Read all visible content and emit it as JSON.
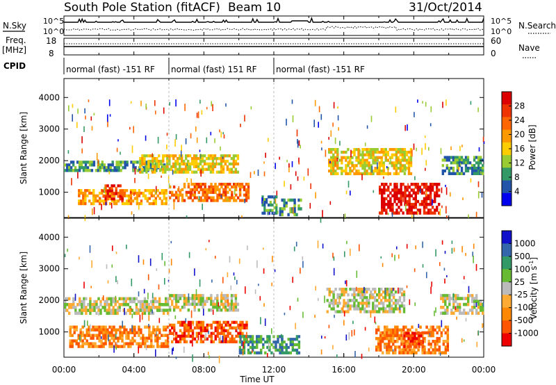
{
  "header": {
    "title": "South Pole Station (fitACF)",
    "beam": "Beam 10",
    "date": "31/Oct/2014"
  },
  "panel_labels": {
    "nsky": "N.Sky",
    "nsearch": "N.Search",
    "freq_line1": "Freq.",
    "freq_line2": "[MHz]",
    "nave": "Nave",
    "cpid": "CPID"
  },
  "cpid_segments": [
    {
      "label": "normal (fast) -151 RF",
      "start_h": 0,
      "end_h": 6
    },
    {
      "label": "normal (fast) 151 RF",
      "start_h": 6,
      "end_h": 12
    },
    {
      "label": "normal (fast) -151 RF",
      "start_h": 12,
      "end_h": 24
    }
  ],
  "xaxis": {
    "label": "Time UT",
    "ticks": [
      "00:00",
      "04:00",
      "08:00",
      "12:00",
      "16:00",
      "20:00",
      "00:00"
    ]
  },
  "colorbars": {
    "power": {
      "label": "Power [dB]",
      "ticks": [
        "28",
        "24",
        "20",
        "16",
        "12",
        "8",
        "4"
      ],
      "colors": [
        "#dd0000",
        "#ee3300",
        "#ff6600",
        "#ff9900",
        "#ffcc00",
        "#99cc33",
        "#339966",
        "#2255aa",
        "#0000ee"
      ]
    },
    "velocity": {
      "label": "Velocity [m s",
      "label_sup": "-1",
      "label_end": "]",
      "ticks": [
        "1000",
        "500",
        "100",
        "25",
        "-25",
        "-100",
        "-500",
        "-1000"
      ],
      "colors": [
        "#1111cc",
        "#3366aa",
        "#339966",
        "#66bb33",
        "#bbbbbb",
        "#ffaa33",
        "#ff8800",
        "#ff5500",
        "#ee0000"
      ]
    }
  },
  "chart_data": [
    {
      "type": "line",
      "title": "",
      "ylabel": "N.Sky",
      "yticks": [
        "10^5",
        "10^0"
      ],
      "right_ticks": [
        "10^5",
        "10^0"
      ],
      "right_label": "N.Search",
      "xlim": [
        0,
        24
      ]
    },
    {
      "type": "line",
      "ylabel": "Freq. [MHz]",
      "yticks": [
        "18",
        "8"
      ],
      "right_ticks": [
        "60",
        "0"
      ],
      "right_label": "Nave",
      "xlim": [
        0,
        24
      ]
    },
    {
      "type": "heatmap",
      "ylabel": "Slant Range [km]",
      "xlabel": "",
      "yticks": [
        1000,
        2000,
        3000,
        4000
      ],
      "ylim": [
        200,
        4600
      ],
      "xlim": [
        0,
        24
      ],
      "colorbar": "Power [dB]",
      "bands": [
        {
          "t0": 0.0,
          "t1": 5.8,
          "r0": 1650,
          "r1": 2000,
          "level": 6
        },
        {
          "t0": 0.8,
          "t1": 5.9,
          "r0": 600,
          "r1": 1100,
          "level": 3
        },
        {
          "t0": 2.2,
          "t1": 3.4,
          "r0": 750,
          "r1": 1250,
          "level": 1
        },
        {
          "t0": 4.3,
          "t1": 10.0,
          "r0": 1600,
          "r1": 2200,
          "level": 4
        },
        {
          "t0": 6.0,
          "t1": 10.6,
          "r0": 700,
          "r1": 1300,
          "level": 2
        },
        {
          "t0": 11.3,
          "t1": 12.2,
          "r0": 300,
          "r1": 900,
          "level": 6
        },
        {
          "t0": 12.3,
          "t1": 13.6,
          "r0": 250,
          "r1": 800,
          "level": 6
        },
        {
          "t0": 15.1,
          "t1": 19.9,
          "r0": 1550,
          "r1": 2400,
          "level": 4
        },
        {
          "t0": 18.0,
          "t1": 21.5,
          "r0": 300,
          "r1": 1300,
          "level": 0
        },
        {
          "t0": 21.6,
          "t1": 24.0,
          "r0": 1550,
          "r1": 2150,
          "level": 6
        }
      ]
    },
    {
      "type": "heatmap",
      "ylabel": "Slant Range [km]",
      "xlabel": "Time UT",
      "yticks": [
        1000,
        2000,
        3000,
        4000
      ],
      "ylim": [
        200,
        4600
      ],
      "xlim": [
        0,
        24
      ],
      "colorbar": "Velocity [m s-1]",
      "bands": [
        {
          "t0": 0.0,
          "t1": 6.0,
          "r0": 1550,
          "r1": 2100,
          "level": 4
        },
        {
          "t0": 0.3,
          "t1": 6.0,
          "r0": 500,
          "r1": 1200,
          "level": 6
        },
        {
          "t0": 6.0,
          "t1": 10.5,
          "r0": 650,
          "r1": 1350,
          "level": 7
        },
        {
          "t0": 6.0,
          "t1": 10.0,
          "r0": 1650,
          "r1": 2200,
          "level": 4
        },
        {
          "t0": 10.0,
          "t1": 13.5,
          "r0": 300,
          "r1": 900,
          "level": 2
        },
        {
          "t0": 15.0,
          "t1": 19.5,
          "r0": 1600,
          "r1": 2400,
          "level": 4
        },
        {
          "t0": 17.8,
          "t1": 22.0,
          "r0": 300,
          "r1": 1200,
          "level": 6
        },
        {
          "t0": 19.4,
          "t1": 20.6,
          "r0": 500,
          "r1": 1000,
          "level": 8
        },
        {
          "t0": 21.5,
          "t1": 24.0,
          "r0": 1550,
          "r1": 2200,
          "level": 4
        }
      ]
    }
  ]
}
